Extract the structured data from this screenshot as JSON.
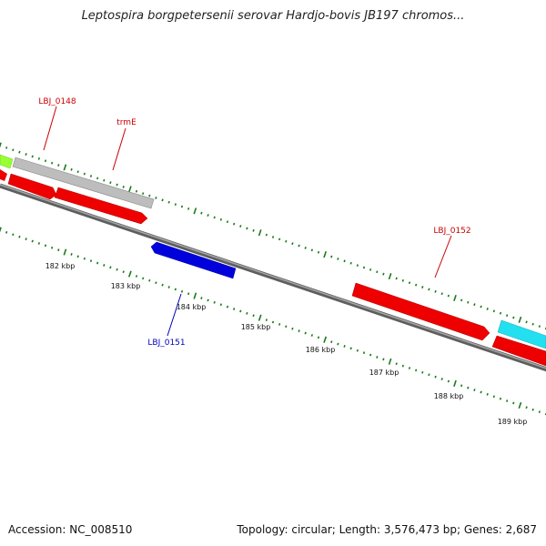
{
  "title": "Leptospira borgpetersenii serovar Hardjo-bovis JB197 chromos...",
  "accession": "Accession: NC_008510",
  "summary": "Topology: circular; Length: 3,576,473 bp; Genes: 2,687",
  "colors": {
    "backbone": "#7a7a7a",
    "tick": "#1a7a1a",
    "gene_red": "#ee0000",
    "gene_blue": "#0000dd",
    "gene_gray": "#b8b8b8",
    "gene_cyan": "#22e0f0",
    "gene_green": "#99ff33",
    "label_red": "#cc0000",
    "label_blue": "#0000bb"
  },
  "scale": {
    "ticks_kbp": [
      "182 kbp",
      "183 kbp",
      "184 kbp",
      "185 kbp",
      "186 kbp",
      "187 kbp",
      "188 kbp",
      "189 kbp"
    ]
  },
  "gene_labels": [
    {
      "text": "LBJ_0148",
      "strand": "forward",
      "color": "red"
    },
    {
      "text": "trmE",
      "strand": "forward",
      "color": "red"
    },
    {
      "text": "LBJ_0152",
      "strand": "forward",
      "color": "red"
    },
    {
      "text": "LBJ_0151",
      "strand": "reverse",
      "color": "blue"
    }
  ]
}
